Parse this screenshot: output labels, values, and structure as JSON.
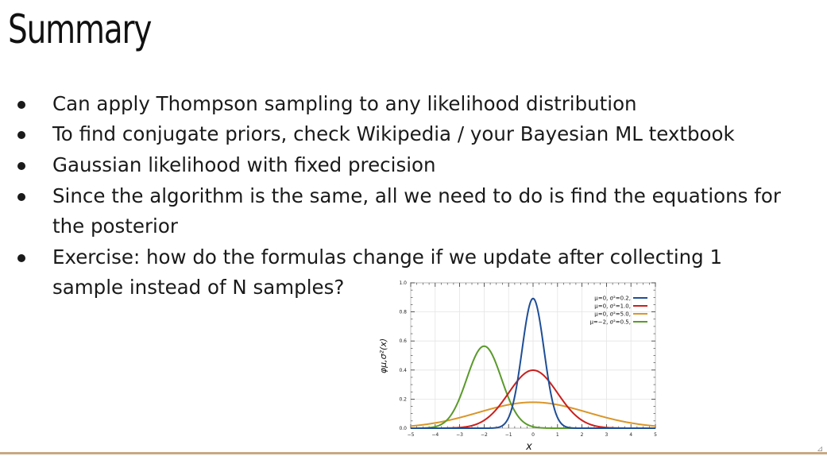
{
  "slide": {
    "title": "Summary",
    "bullets": [
      {
        "lines": [
          "Can apply Thompson sampling to any likelihood distribution"
        ]
      },
      {
        "lines": [
          "To find conjugate priors, check Wikipedia / your Bayesian ML textbook"
        ]
      },
      {
        "lines": [
          "Gaussian likelihood with fixed precision"
        ]
      },
      {
        "lines": [
          "Since the algorithm is the same, all we need to do is find the equations for",
          "the posterior"
        ]
      },
      {
        "lines": [
          "Exercise: how do the formulas change if we update after collecting 1",
          "sample instead of N samples?"
        ]
      }
    ],
    "corner_mark": "⊿",
    "accent_color": "#c8a983"
  },
  "chart_data": {
    "type": "line",
    "xlabel": "x",
    "ylabel": "φμ,σ²(x)",
    "xlim": [
      -5,
      5
    ],
    "ylim": [
      0,
      1.0
    ],
    "xticks": [
      "−5",
      "−4",
      "−3",
      "−2",
      "−1",
      "0",
      "1",
      "2",
      "3",
      "4",
      "5"
    ],
    "yticks": [
      "0.0",
      "0.2",
      "0.4",
      "0.6",
      "0.8",
      "1.0"
    ],
    "grid": true,
    "legend": "top-right",
    "series": [
      {
        "name": "μ=0,   σ²=0.2,",
        "mu": 0,
        "variance": 0.2,
        "color": "#1f4e96"
      },
      {
        "name": "μ=0,   σ²=1.0,",
        "mu": 0,
        "variance": 1.0,
        "color": "#c8201e"
      },
      {
        "name": "μ=0,   σ²=5.0,",
        "mu": 0,
        "variance": 5.0,
        "color": "#d9962a"
      },
      {
        "name": "μ=−2, σ²=0.5,",
        "mu": -2,
        "variance": 0.5,
        "color": "#5a9a2b"
      }
    ]
  }
}
